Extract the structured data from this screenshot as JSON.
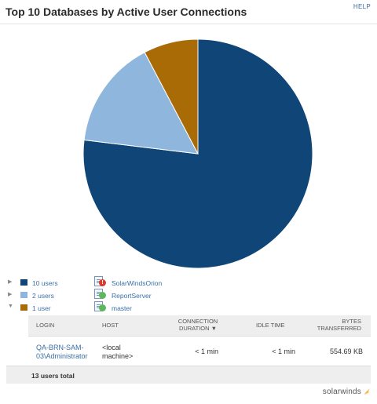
{
  "header": {
    "title": "Top 10 Databases by Active User Connections",
    "help_label": "HELP"
  },
  "chart_data": {
    "type": "pie",
    "slices": [
      {
        "label": "10 users",
        "value": 10,
        "color": "#0f4677",
        "database": "SolarWindsOrion"
      },
      {
        "label": "2 users",
        "value": 2,
        "color": "#8fb6dc",
        "database": "ReportServer"
      },
      {
        "label": "1 user",
        "value": 1,
        "color": "#a86b06",
        "database": "master"
      }
    ]
  },
  "legend": [
    {
      "users_label": "10 users",
      "color": "#0f4677",
      "database": "SolarWindsOrion",
      "status": "critical",
      "status_glyph": "!",
      "expanded": false
    },
    {
      "users_label": "2 users",
      "color": "#8fb6dc",
      "database": "ReportServer",
      "status": "up",
      "status_glyph": "",
      "expanded": false
    },
    {
      "users_label": "1 user",
      "color": "#a86b06",
      "database": "master",
      "status": "up",
      "status_glyph": "",
      "expanded": true
    }
  ],
  "detail_table": {
    "columns": {
      "login": "LOGIN",
      "host": "HOST",
      "connection_duration": "CONNECTION DURATION ▼",
      "idle_time": "IDLE TIME",
      "bytes_transferred": "BYTES TRANSFERRED"
    },
    "rows": [
      {
        "login_line1": "QA-BRN-SAM-",
        "login_line2": "03\\Administrator",
        "host_line1": "<local",
        "host_line2": "machine>",
        "connection_duration": "< 1 min",
        "idle_time": "< 1 min",
        "bytes_transferred": "554.69 KB"
      }
    ]
  },
  "footer": {
    "total": "13 users total",
    "brand": "solarwinds"
  }
}
